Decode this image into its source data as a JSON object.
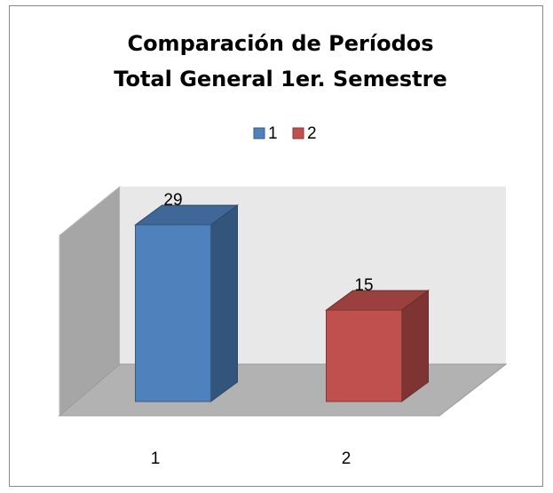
{
  "chart_data": {
    "type": "bar3d",
    "title": "Comparación de Períodos",
    "subtitle": "Total General 1er. Semestre",
    "categories": [
      "1",
      "2"
    ],
    "values": [
      29,
      15
    ],
    "colors": [
      "#4f81bd",
      "#c0504d"
    ],
    "ylim": [
      0,
      35
    ],
    "legend": "top"
  }
}
